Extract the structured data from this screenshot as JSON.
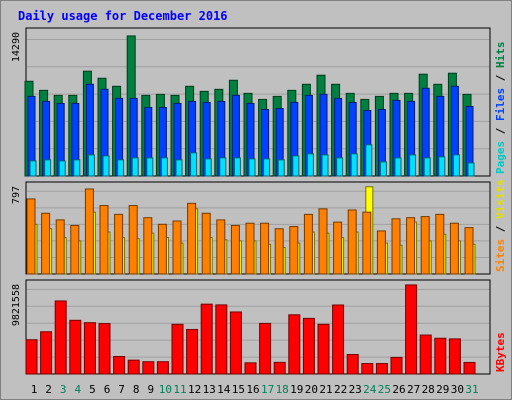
{
  "chart_data": {
    "type": "bar",
    "title": "Daily usage for December 2016",
    "days": [
      "1",
      "2",
      "3",
      "4",
      "5",
      "6",
      "7",
      "8",
      "9",
      "10",
      "11",
      "12",
      "13",
      "14",
      "15",
      "16",
      "17",
      "18",
      "19",
      "20",
      "21",
      "22",
      "23",
      "24",
      "25",
      "26",
      "27",
      "28",
      "29",
      "30",
      "31"
    ],
    "weekend_days": [
      "3",
      "4",
      "10",
      "11",
      "17",
      "18",
      "24",
      "25",
      "31"
    ],
    "panels": [
      {
        "scale_max_label": "14290",
        "scale_max": 14290,
        "series": [
          {
            "name": "Hits",
            "color": "#008040",
            "values": [
              9400,
              8500,
              8000,
              8000,
              10400,
              9700,
              8900,
              13900,
              8000,
              8100,
              8000,
              8900,
              8400,
              8600,
              9500,
              8200,
              7600,
              7900,
              8500,
              9100,
              10000,
              9100,
              8200,
              7600,
              7900,
              8200,
              8200,
              10100,
              9100,
              10200,
              8100
            ]
          },
          {
            "name": "Files",
            "color": "#0040ff",
            "values": [
              7900,
              7400,
              7200,
              7200,
              9100,
              8600,
              7700,
              7700,
              6800,
              6800,
              7200,
              7400,
              7300,
              7400,
              8000,
              7200,
              6600,
              6700,
              7300,
              8000,
              8100,
              7700,
              7300,
              6500,
              6600,
              7500,
              7400,
              8700,
              7900,
              8900,
              6900
            ]
          },
          {
            "name": "Pages",
            "color": "#00e0ff",
            "values": [
              1500,
              1600,
              1500,
              1600,
              2100,
              2000,
              1600,
              1800,
              1800,
              1800,
              1600,
              2300,
              1700,
              1800,
              1800,
              1700,
              1700,
              1600,
              2000,
              2200,
              2100,
              1800,
              2200,
              3100,
              1400,
              1800,
              2100,
              1800,
              1900,
              2100,
              1300
            ]
          }
        ]
      },
      {
        "scale_max_label": "797",
        "scale_max": 797,
        "series": [
          {
            "name": "Visits",
            "color": "#ffff00",
            "values": [
              450,
              410,
              330,
              300,
              560,
              380,
              330,
              320,
              370,
              330,
              280,
              590,
              330,
              310,
              300,
              300,
              270,
              240,
              280,
              380,
              370,
              330,
              380,
              790,
              280,
              260,
              470,
              300,
              360,
              300,
              270
            ]
          },
          {
            "name": "Sites",
            "color": "#ff8000",
            "values": [
              680,
              550,
              490,
              440,
              770,
              620,
              540,
              620,
              510,
              450,
              480,
              640,
              550,
              490,
              440,
              460,
              460,
              410,
              430,
              540,
              590,
              470,
              580,
              560,
              390,
              500,
              510,
              520,
              540,
              460,
              420
            ]
          }
        ]
      },
      {
        "scale_max_label": "9821558",
        "scale_max": 9821558,
        "series": [
          {
            "name": "KBytes",
            "color": "#ff0000",
            "values": [
              3740000,
              4610000,
              7970000,
              5860000,
              5600000,
              5500000,
              1910000,
              1510000,
              1340000,
              1340000,
              5420000,
              4860000,
              7620000,
              7540000,
              6770000,
              1220000,
              5520000,
              1270000,
              6460000,
              6070000,
              5420000,
              7530000,
              2130000,
              1140000,
              1140000,
              1810000,
              9720000,
              4250000,
              3900000,
              3830000,
              1260000
            ]
          }
        ]
      }
    ],
    "right_labels": [
      {
        "parts": [
          {
            "text": "Pages",
            "color": "#00c8c8"
          },
          {
            "text": " / ",
            "color": "#000000"
          },
          {
            "text": "Files",
            "color": "#0040ff"
          },
          {
            "text": " / ",
            "color": "#000000"
          },
          {
            "text": "Hits",
            "color": "#008040"
          }
        ]
      },
      {
        "parts": [
          {
            "text": "Sites",
            "color": "#ff8000"
          },
          {
            "text": " / ",
            "color": "#000000"
          },
          {
            "text": "Visits",
            "color": "#e0e000"
          }
        ]
      },
      {
        "parts": [
          {
            "text": "KBytes",
            "color": "#ff0000"
          }
        ]
      }
    ],
    "colors": {
      "title": "#0000ff",
      "plot_bg": "#c0c0c0",
      "frame": "#808080",
      "weekday_label": "#000000",
      "weekend_label": "#00805a"
    }
  }
}
